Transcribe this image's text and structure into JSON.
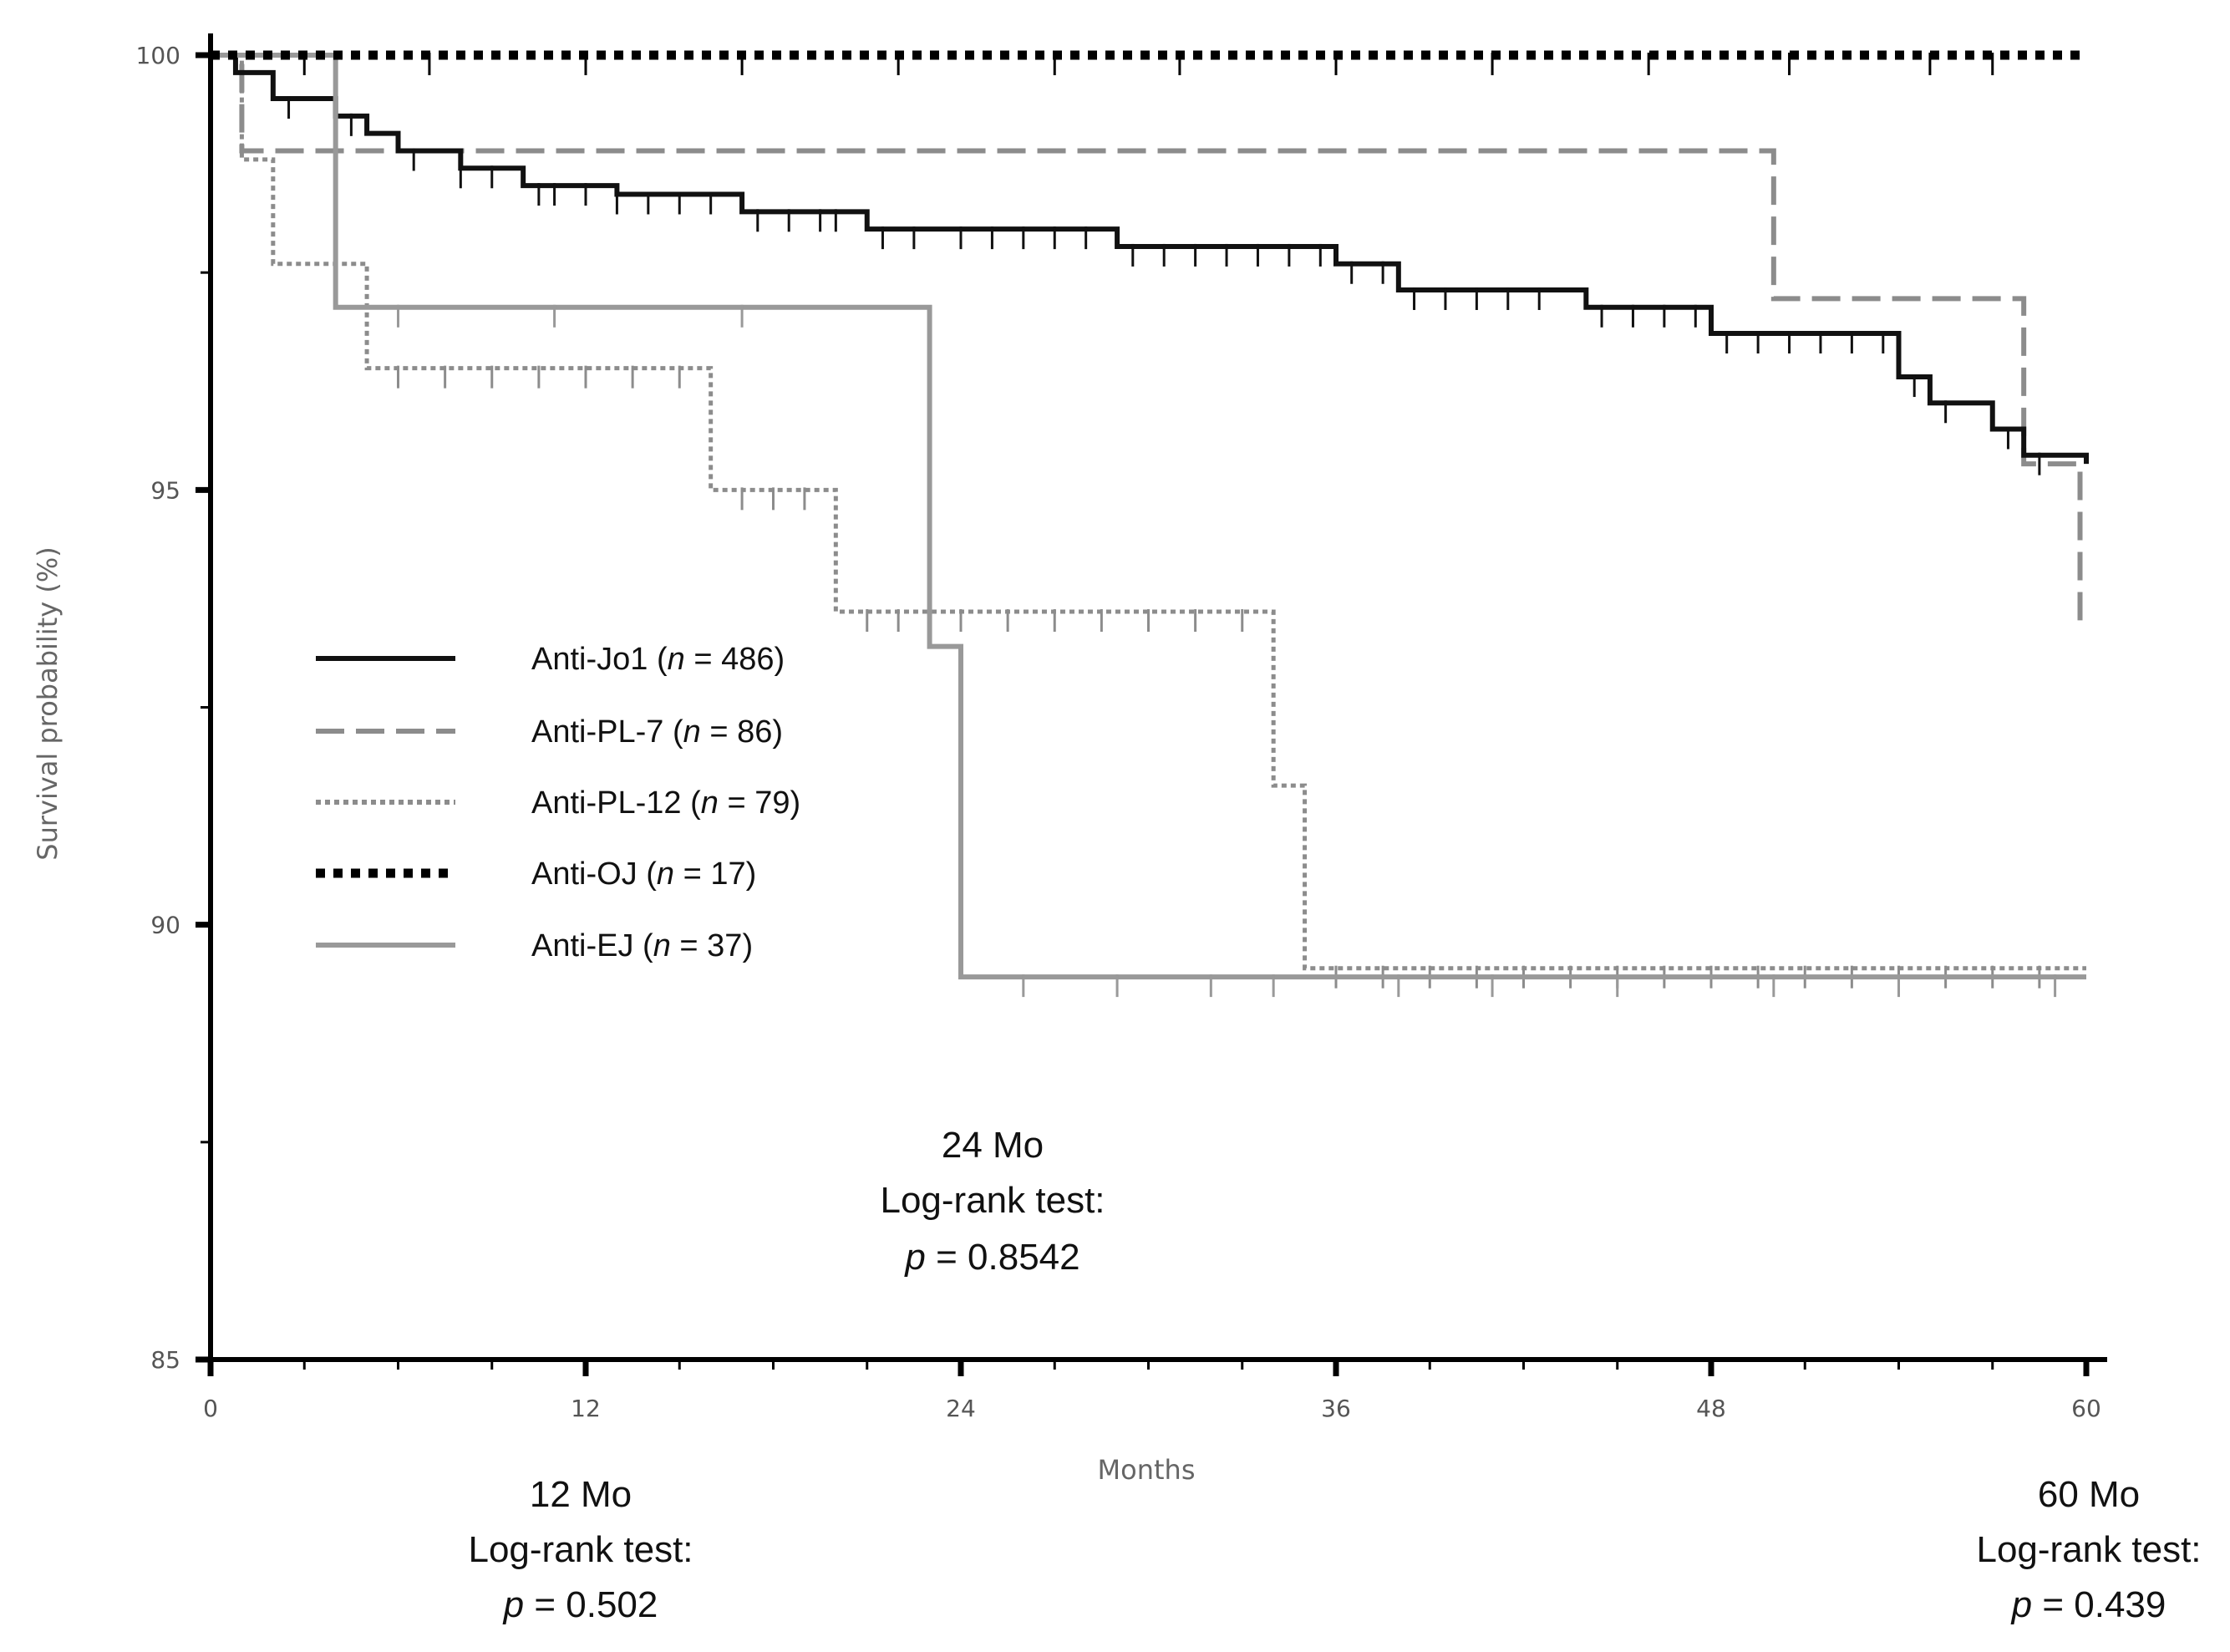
{
  "chart_data": {
    "type": "line",
    "subtype": "kaplan-meier",
    "xlabel": "Months",
    "ylabel": "Survival probability (%)",
    "xlim": [
      0,
      60
    ],
    "ylim": [
      85,
      100
    ],
    "xticks": [
      0,
      12,
      24,
      36,
      48,
      60
    ],
    "yticks": [
      85,
      90,
      95,
      100
    ],
    "series": [
      {
        "id": "jo1",
        "name": "Anti-Jo1",
        "n": "486",
        "color": "#111111",
        "style": "solid",
        "steps": [
          [
            0,
            100
          ],
          [
            0.8,
            99.8
          ],
          [
            2,
            99.5
          ],
          [
            4,
            99.3
          ],
          [
            5,
            99.1
          ],
          [
            6,
            98.9
          ],
          [
            8,
            98.7
          ],
          [
            10,
            98.5
          ],
          [
            13,
            98.4
          ],
          [
            17,
            98.2
          ],
          [
            21,
            98.0
          ],
          [
            29,
            97.8
          ],
          [
            36,
            97.6
          ],
          [
            38,
            97.3
          ],
          [
            44,
            97.1
          ],
          [
            48,
            96.8
          ],
          [
            54,
            96.3
          ],
          [
            55,
            96.0
          ],
          [
            57,
            95.7
          ],
          [
            58,
            95.4
          ],
          [
            60,
            95.3
          ]
        ],
        "censor": [
          2.5,
          4.5,
          6.5,
          8,
          9,
          10.5,
          11,
          12,
          13,
          14,
          15,
          16,
          17.5,
          18.5,
          19.5,
          20,
          21.5,
          22.5,
          24,
          25,
          26,
          27,
          28,
          29.5,
          30.5,
          31.5,
          32.5,
          33.5,
          34.5,
          35.5,
          36.5,
          37.5,
          38.5,
          39.5,
          40.5,
          41.5,
          42.5,
          44.5,
          45.5,
          46.5,
          47.5,
          48.5,
          49.5,
          50.5,
          51.5,
          52.5,
          53.5,
          54.5,
          55.5,
          57.5,
          58.5
        ]
      },
      {
        "id": "pl7",
        "name": "Anti-PL-7",
        "n": "86",
        "color": "#8c8c8c",
        "style": "long-dash",
        "steps": [
          [
            0,
            100
          ],
          [
            1,
            98.9
          ],
          [
            50,
            97.2
          ],
          [
            58,
            95.3
          ],
          [
            59.8,
            93.5
          ]
        ],
        "censor": []
      },
      {
        "id": "pl12",
        "name": "Anti-PL-12",
        "n": "79",
        "color": "#8c8c8c",
        "style": "dotted",
        "steps": [
          [
            0,
            100
          ],
          [
            1,
            98.8
          ],
          [
            2,
            97.6
          ],
          [
            5,
            96.4
          ],
          [
            16,
            95.0
          ],
          [
            20,
            93.6
          ],
          [
            34,
            91.6
          ],
          [
            35,
            89.5
          ],
          [
            60,
            89.5
          ]
        ],
        "censor": [
          6,
          7.5,
          9,
          10.5,
          12,
          13.5,
          15,
          17,
          18,
          19,
          21,
          22,
          24,
          25.5,
          27,
          28.5,
          30,
          31.5,
          33,
          36,
          37.5,
          39,
          40.5,
          42,
          43.5,
          45,
          46.5,
          48,
          49.5,
          51,
          52.5,
          54,
          55.5,
          57,
          58.5
        ]
      },
      {
        "id": "oj",
        "name": "Anti-OJ",
        "n": "17",
        "color": "#000000",
        "style": "heavy-dotted",
        "steps": [
          [
            0,
            100
          ],
          [
            60,
            100
          ]
        ],
        "censor": [
          3,
          7,
          12,
          17,
          22,
          27,
          31,
          36,
          41,
          46,
          50.5,
          55,
          57
        ]
      },
      {
        "id": "ej",
        "name": "Anti-EJ",
        "n": "37",
        "color": "#999999",
        "style": "solid",
        "steps": [
          [
            0,
            100
          ],
          [
            4,
            97.1
          ],
          [
            23,
            93.2
          ],
          [
            24,
            89.4
          ],
          [
            60,
            89.4
          ]
        ],
        "censor": [
          6,
          11,
          17,
          26,
          29,
          32,
          34,
          38,
          41,
          45,
          50,
          54,
          59
        ]
      }
    ],
    "annotations": [
      {
        "id": "a12",
        "title": "12 Mo",
        "test": "Log-rank test:",
        "p": "= 0.502"
      },
      {
        "id": "a24",
        "title": "24 Mo",
        "test": "Log-rank test:",
        "p": "= 0.8542"
      },
      {
        "id": "a60",
        "title": "60 Mo",
        "test": "Log-rank test:",
        "p": "= 0.439"
      }
    ],
    "legend_position": "center-left"
  }
}
